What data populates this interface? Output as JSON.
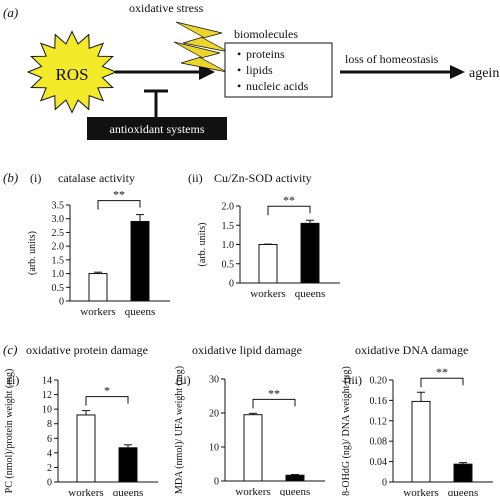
{
  "panel_a": {
    "label": "(a)",
    "ros": "ROS",
    "oxidative_stress": "oxidative stress",
    "biomolecules": "biomolecules",
    "biomolecule_items": [
      "proteins",
      "lipids",
      "nucleic acids"
    ],
    "loss": "loss of homeostasis",
    "ageing": "ageing",
    "antioxidant": "antioxidant systems",
    "colors": {
      "burst": "#f3ea2a",
      "bolt": "#ecd52b",
      "box_fill": "#111111",
      "box_text": "#ffffff"
    }
  },
  "panel_b_label": "(b)",
  "panel_c_label": "(c)",
  "headings": {
    "c_damage_1": "oxidative protein damage",
    "c_damage_2": "oxidative lipid damage",
    "c_damage_3": "oxidative DNA damage"
  },
  "chart_data": [
    {
      "type": "bar",
      "sub": "(i)",
      "title": "catalase activity",
      "ylabel": "(arb. units)",
      "categories": [
        "workers",
        "queens"
      ],
      "values": [
        1.0,
        2.9
      ],
      "errors": [
        0.05,
        0.25
      ],
      "colors": [
        "#ffffff",
        "#000000"
      ],
      "ylim": [
        0,
        3.5
      ],
      "yticks": [
        "0",
        "0.5",
        "1.0",
        "1.5",
        "2.0",
        "2.5",
        "3.0",
        "3.5"
      ],
      "sig": "**"
    },
    {
      "type": "bar",
      "sub": "(ii)",
      "title": "Cu/Zn-SOD activity",
      "ylabel": "(arb. units)",
      "categories": [
        "workers",
        "queens"
      ],
      "values": [
        1.0,
        1.55
      ],
      "errors": [
        0.01,
        0.08
      ],
      "colors": [
        "#ffffff",
        "#000000"
      ],
      "ylim": [
        0,
        2.0
      ],
      "yticks": [
        "0",
        "0.5",
        "1.0",
        "1.5",
        "2.0"
      ],
      "sig": "**"
    },
    {
      "type": "bar",
      "sub": "(i)",
      "title": "",
      "ylabel": "PC (nmol)/protein weight (mg)",
      "categories": [
        "workers",
        "queens"
      ],
      "values": [
        9.2,
        4.7
      ],
      "errors": [
        0.6,
        0.4
      ],
      "colors": [
        "#ffffff",
        "#000000"
      ],
      "ylim": [
        0,
        14
      ],
      "yticks": [
        "0",
        "2",
        "4",
        "6",
        "8",
        "10",
        "12",
        "14"
      ],
      "sig": "*"
    },
    {
      "type": "bar",
      "sub": "(ii)",
      "title": "",
      "ylabel": "MDA (nmol)/ UFA weight (mg)",
      "categories": [
        "workers",
        "queens"
      ],
      "values": [
        19.5,
        1.7
      ],
      "errors": [
        0.4,
        0.2
      ],
      "colors": [
        "#ffffff",
        "#000000"
      ],
      "ylim": [
        0,
        30
      ],
      "yticks": [
        "0",
        "10",
        "20",
        "30"
      ],
      "sig": "**"
    },
    {
      "type": "bar",
      "sub": "(iii)",
      "title": "",
      "ylabel": "8-OHdG (ng)/ DNA weight (μg)",
      "categories": [
        "workers",
        "queens"
      ],
      "values": [
        0.158,
        0.035
      ],
      "errors": [
        0.018,
        0.003
      ],
      "colors": [
        "#ffffff",
        "#000000"
      ],
      "ylim": [
        0,
        0.2
      ],
      "yticks": [
        "0",
        "0.04",
        "0.08",
        "0.12",
        "0.16",
        "0.20"
      ],
      "sig": "**"
    }
  ]
}
